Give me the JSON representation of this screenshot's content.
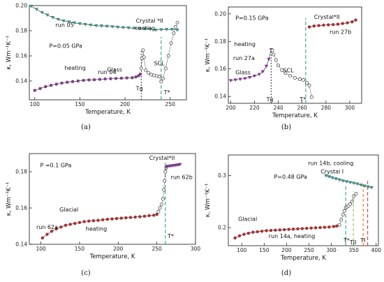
{
  "chart_data": [
    {
      "id": "a",
      "type": "scatter",
      "panel_label": "(a)",
      "xlabel": "Temperature, K",
      "ylabel": "κ, Wm⁻¹K⁻¹",
      "xlim": [
        94,
        268
      ],
      "ylim": [
        0.125,
        0.2
      ],
      "xticks": [
        100,
        150,
        200,
        250
      ],
      "yticks": [
        0.14,
        0.16,
        0.18,
        0.2
      ],
      "yticks_text": [
        "0.14",
        "0.16",
        "0.18",
        "0.20"
      ],
      "series": [
        {
          "name": "run 05",
          "marker": "triangle-down",
          "color": "#26a69a",
          "x": [
            96,
            102,
            108,
            114,
            120,
            126,
            132,
            138,
            144,
            150,
            156,
            162,
            168,
            174,
            180,
            186,
            192,
            198,
            204,
            210,
            216,
            222,
            228,
            234,
            240,
            246,
            252,
            258
          ],
          "y": [
            0.1995,
            0.197,
            0.1945,
            0.1925,
            0.1905,
            0.189,
            0.1878,
            0.187,
            0.1862,
            0.1855,
            0.185,
            0.1845,
            0.184,
            0.1838,
            0.1835,
            0.1832,
            0.1828,
            0.1825,
            0.1822,
            0.182,
            0.1818,
            0.1815,
            0.1812,
            0.1805,
            0.1808,
            0.181,
            0.181,
            0.1805
          ]
        },
        {
          "name": "run 04",
          "marker": "circle",
          "color": "#8e3aa0",
          "x": [
            100,
            106,
            112,
            118,
            124,
            130,
            136,
            142,
            148,
            154,
            160,
            166,
            172,
            178,
            184,
            190,
            196,
            202,
            208,
            212,
            215,
            217
          ],
          "y": [
            0.1325,
            0.134,
            0.1355,
            0.1365,
            0.1375,
            0.1383,
            0.139,
            0.1395,
            0.14,
            0.1405,
            0.1408,
            0.141,
            0.1413,
            0.1416,
            0.1418,
            0.142,
            0.1422,
            0.1424,
            0.1426,
            0.1432,
            0.1442,
            0.1455
          ]
        },
        {
          "name": "heating",
          "marker": "open-circle",
          "color": "#333333",
          "x": [
            218,
            219,
            220,
            221,
            223,
            226,
            229,
            232,
            235,
            238,
            240,
            242,
            245,
            248,
            251,
            254,
            256,
            258
          ],
          "y": [
            0.15,
            0.158,
            0.1645,
            0.159,
            0.1485,
            0.1465,
            0.145,
            0.1445,
            0.144,
            0.1435,
            0.1395,
            0.142,
            0.15,
            0.16,
            0.17,
            0.178,
            0.183,
            0.1865
          ]
        }
      ],
      "vlines": [
        {
          "x": 218,
          "color": "#444444",
          "dash": "2,2",
          "y_from": 0.125,
          "y_to": 0.165
        },
        {
          "x": 240,
          "color": "#2aa198",
          "dash": "5,3",
          "y_from": 0.125,
          "y_to": 0.175
        }
      ],
      "texts": [
        {
          "text": "run 05",
          "x": 123,
          "y": 0.183
        },
        {
          "text": "Crystal *II",
          "x": 212,
          "y": 0.1865
        },
        {
          "text": "cooling",
          "x": 211,
          "y": 0.1805
        },
        {
          "text": "P=0.05 GPa",
          "x": 116,
          "y": 0.1665
        },
        {
          "text": "heating",
          "x": 133,
          "y": 0.149
        },
        {
          "text": "run 04",
          "x": 170,
          "y": 0.1455
        },
        {
          "text": "Glass",
          "x": 180,
          "y": 0.1475
        },
        {
          "text": "SCL",
          "x": 232,
          "y": 0.1525
        },
        {
          "text": "Tg",
          "x": 212,
          "y": 0.1325
        },
        {
          "text": "T*",
          "x": 243,
          "y": 0.1295
        }
      ]
    },
    {
      "id": "b",
      "type": "scatter",
      "panel_label": "(b)",
      "xlabel": "Temperature, K",
      "ylabel": "κ, Wm⁻¹K⁻¹",
      "xlim": [
        198,
        310
      ],
      "ylim": [
        0.135,
        0.205
      ],
      "xticks": [
        200,
        220,
        240,
        260,
        280,
        300
      ],
      "yticks": [
        0.14,
        0.16,
        0.18,
        0.2
      ],
      "yticks_text": [
        "0.14",
        "0.16",
        "0.18",
        "0.20"
      ],
      "series": [
        {
          "name": "run 27a",
          "marker": "triangle-down",
          "color": "#9c27b0",
          "x": [
            200,
            204,
            208,
            212,
            216,
            220,
            224,
            227,
            230,
            232,
            234
          ],
          "y": [
            0.1515,
            0.152,
            0.1525,
            0.153,
            0.1538,
            0.1548,
            0.156,
            0.158,
            0.162,
            0.167,
            0.174
          ]
        },
        {
          "name": "heating",
          "marker": "open-circle",
          "color": "#333333",
          "x": [
            235,
            236,
            238,
            240,
            243,
            246,
            250,
            254,
            258,
            261,
            264,
            266,
            268
          ],
          "y": [
            0.1735,
            0.1705,
            0.1665,
            0.1625,
            0.159,
            0.157,
            0.155,
            0.1535,
            0.1525,
            0.152,
            0.15,
            0.148,
            0.1395
          ]
        },
        {
          "name": "run 27b",
          "marker": "circle",
          "color": "#c62828",
          "x": [
            266,
            270,
            274,
            278,
            282,
            286,
            290,
            294,
            298,
            302,
            305
          ],
          "y": [
            0.1905,
            0.1912,
            0.1915,
            0.1918,
            0.192,
            0.1922,
            0.1925,
            0.193,
            0.1935,
            0.1942,
            0.1955
          ]
        }
      ],
      "vlines": [
        {
          "x": 234,
          "color": "#444444",
          "dash": "2,2",
          "y_from": 0.135,
          "y_to": 0.175
        },
        {
          "x": 263,
          "color": "#2aa198",
          "dash": "5,3",
          "y_from": 0.135,
          "y_to": 0.197
        }
      ],
      "texts": [
        {
          "text": "P=0.15 GPa",
          "x": 204,
          "y": 0.1955
        },
        {
          "text": "heating",
          "x": 203,
          "y": 0.1765
        },
        {
          "text": "run 27a",
          "x": 202,
          "y": 0.1665
        },
        {
          "text": "Glass",
          "x": 204,
          "y": 0.156
        },
        {
          "text": "SCL",
          "x": 244,
          "y": 0.1575
        },
        {
          "text": "Crystal*II",
          "x": 270,
          "y": 0.1965
        },
        {
          "text": "run 27b",
          "x": 283,
          "y": 0.1855
        },
        {
          "text": "Tg",
          "x": 230,
          "y": 0.1365
        },
        {
          "text": "T*",
          "x": 258,
          "y": 0.1365
        }
      ]
    },
    {
      "id": "c",
      "type": "scatter",
      "panel_label": "(c)",
      "xlabel": "Temperature, K",
      "ylabel": "κ, Wm⁻¹K⁻¹",
      "xlim": [
        85,
        300
      ],
      "ylim": [
        0.14,
        0.19
      ],
      "xticks": [
        100,
        150,
        200,
        250,
        300
      ],
      "yticks": [
        0.14,
        0.16,
        0.18
      ],
      "yticks_text": [
        "0.14",
        "0.16",
        "0.18"
      ],
      "series": [
        {
          "name": "run 62a",
          "marker": "circle",
          "color": "#c62828",
          "x": [
            102,
            108,
            114,
            120,
            126,
            132,
            138,
            144,
            150,
            156,
            162,
            168,
            174,
            180,
            186,
            192,
            198,
            204,
            210,
            216,
            222,
            228,
            234,
            240,
            246,
            250
          ],
          "y": [
            0.1435,
            0.1455,
            0.1472,
            0.1485,
            0.1495,
            0.1505,
            0.151,
            0.1515,
            0.152,
            0.1525,
            0.1528,
            0.153,
            0.1532,
            0.1535,
            0.1538,
            0.154,
            0.1542,
            0.1544,
            0.1546,
            0.1548,
            0.155,
            0.1552,
            0.1555,
            0.1558,
            0.156,
            0.1565
          ]
        },
        {
          "name": "heating",
          "marker": "open-circle",
          "color": "#333333",
          "x": [
            252,
            254,
            256,
            258,
            259,
            260,
            261,
            262
          ],
          "y": [
            0.158,
            0.16,
            0.162,
            0.165,
            0.17,
            0.175,
            0.18,
            0.182
          ]
        },
        {
          "name": "run 62b",
          "marker": "triangle-down",
          "color": "#8e3aa0",
          "x": [
            262,
            264,
            266,
            268,
            270,
            272,
            274,
            276,
            278,
            280
          ],
          "y": [
            0.1825,
            0.183,
            0.183,
            0.1832,
            0.1832,
            0.1835,
            0.1835,
            0.1837,
            0.1838,
            0.184
          ]
        }
      ],
      "vlines": [
        {
          "x": 261,
          "color": "#2aa198",
          "dash": "5,3",
          "y_from": 0.14,
          "y_to": 0.185
        }
      ],
      "texts": [
        {
          "text": "P =0.1 GPa",
          "x": 99,
          "y": 0.1825
        },
        {
          "text": "Crystal*II",
          "x": 240,
          "y": 0.1865
        },
        {
          "text": "run 62b",
          "x": 268,
          "y": 0.176
        },
        {
          "text": "Glacial",
          "x": 124,
          "y": 0.158
        },
        {
          "text": "run 62a",
          "x": 94,
          "y": 0.1485
        },
        {
          "text": "heating",
          "x": 158,
          "y": 0.1475
        },
        {
          "text": "T*",
          "x": 264,
          "y": 0.1435
        }
      ]
    },
    {
      "id": "d",
      "type": "scatter",
      "panel_label": "(d)",
      "xlabel": "Temperature, K",
      "ylabel": "κ, Wm⁻¹K⁻¹",
      "xlim": [
        70,
        405
      ],
      "ylim": [
        0.165,
        0.34
      ],
      "xticks": [
        100,
        150,
        200,
        250,
        300,
        350,
        400
      ],
      "yticks": [
        0.2,
        0.3
      ],
      "yticks_text": [
        "0.2",
        "0.3"
      ],
      "series": [
        {
          "name": "run 14a, heating",
          "marker": "circle",
          "color": "#c62828",
          "x": [
            85,
            95,
            105,
            115,
            125,
            135,
            145,
            155,
            165,
            175,
            185,
            195,
            205,
            215,
            225,
            235,
            245,
            255,
            265,
            275,
            285,
            295,
            305,
            312
          ],
          "y": [
            0.18,
            0.184,
            0.187,
            0.189,
            0.191,
            0.192,
            0.193,
            0.194,
            0.1945,
            0.195,
            0.1955,
            0.196,
            0.1965,
            0.197,
            0.1975,
            0.198,
            0.1985,
            0.199,
            0.1995,
            0.2,
            0.2005,
            0.201,
            0.202,
            0.203
          ]
        },
        {
          "name": "heating",
          "marker": "open-circle",
          "color": "#333333",
          "x": [
            318,
            322,
            326,
            329,
            332,
            335,
            338,
            342,
            346,
            350,
            355
          ],
          "y": [
            0.205,
            0.215,
            0.225,
            0.232,
            0.238,
            0.24,
            0.242,
            0.245,
            0.25,
            0.26,
            0.265
          ]
        },
        {
          "name": "run 14b, cooling",
          "marker": "triangle-down",
          "color": "#26a69a",
          "x": [
            288,
            295,
            302,
            310,
            318,
            326,
            334,
            342,
            350,
            358,
            366,
            374,
            382,
            390
          ],
          "y": [
            0.3,
            0.298,
            0.296,
            0.294,
            0.292,
            0.29,
            0.2885,
            0.287,
            0.2855,
            0.284,
            0.282,
            0.28,
            0.2785,
            0.277
          ]
        }
      ],
      "vlines": [
        {
          "x": 332,
          "color": "#2aa198",
          "dash": "5,3",
          "y_from": 0.165,
          "y_to": 0.28
        },
        {
          "x": 349,
          "color": "#8bc34a",
          "dash": "4,3",
          "y_from": 0.165,
          "y_to": 0.27
        },
        {
          "x": 371,
          "color": "#ef6c00",
          "dash": "4,3",
          "y_from": 0.165,
          "y_to": 0.285
        },
        {
          "x": 381,
          "color": "#e53935",
          "dash": "5,3",
          "y_from": 0.165,
          "y_to": 0.29
        }
      ],
      "texts": [
        {
          "text": "run 14b, cooling",
          "x": 248,
          "y": 0.3205
        },
        {
          "text": "P=0.48 GPa",
          "x": 172,
          "y": 0.294
        },
        {
          "text": "Crystal I",
          "x": 276,
          "y": 0.304
        },
        {
          "text": "Glacial",
          "x": 92,
          "y": 0.213
        },
        {
          "text": "run 14a, heating",
          "x": 160,
          "y": 0.18
        },
        {
          "text": "T*",
          "x": 327,
          "y": 0.172
        },
        {
          "text": "TII",
          "x": 341,
          "y": 0.168
        },
        {
          "text": "TI",
          "x": 365,
          "y": 0.172
        }
      ]
    }
  ]
}
